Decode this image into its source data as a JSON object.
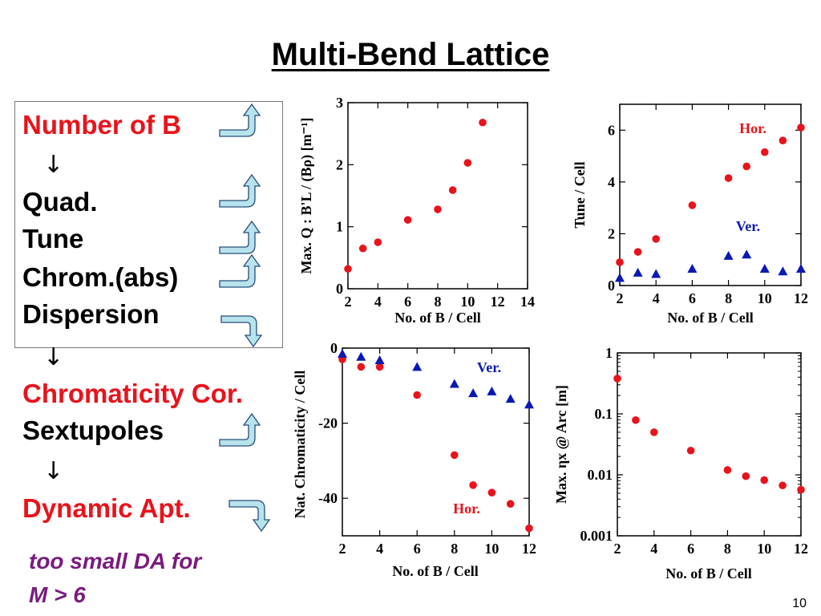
{
  "title": "Multi-Bend Lattice",
  "page_number": "10",
  "flow": {
    "number_of_b": "Number of B",
    "quad": "Quad.",
    "tune": "Tune",
    "chrom": "Chrom.(abs)",
    "dispersion": "Dispersion",
    "chromaticity_cor": "Chromaticity Cor.",
    "sextupoles": "Sextupoles",
    "dynamic_apt": "Dynamic Apt.",
    "down_arrow": "↓",
    "note_line1": "too small DA for",
    "note_line2": "M > 6"
  },
  "icons": {
    "number_of_b": "up-turn-arrow-icon",
    "quad": "up-turn-arrow-icon",
    "tune": "up-turn-arrow-icon",
    "chrom": "up-turn-arrow-icon",
    "dispersion": "down-turn-arrow-icon",
    "sextupoles": "up-turn-arrow-icon",
    "dynamic_apt": "down-turn-arrow-icon",
    "fill_color": "#b7e3ec",
    "stroke_color": "#2a4d7a"
  },
  "colors": {
    "red": "#e8131b",
    "blue": "#0a18b4",
    "text_red": "#e8131b",
    "note": "#7a1a7e"
  },
  "chart_data": [
    {
      "type": "scatter",
      "xlabel": "No. of B / Cell",
      "ylabel": "Max. Q : B'L / (Bρ) [m⁻¹]",
      "xlim": [
        2,
        14
      ],
      "ylim": [
        0,
        3
      ],
      "xticks": [
        2,
        4,
        6,
        8,
        10,
        12,
        14
      ],
      "yticks": [
        0,
        1,
        2,
        3
      ],
      "series": [
        {
          "color": "#e8131b",
          "marker": "circle",
          "x": [
            2,
            3,
            4,
            6,
            8,
            9,
            10,
            11
          ],
          "y": [
            0.32,
            0.65,
            0.75,
            1.11,
            1.28,
            1.59,
            2.03,
            2.68
          ]
        }
      ]
    },
    {
      "type": "scatter",
      "xlabel": "No. of B / Cell",
      "ylabel": "Tune / Cell",
      "xlim": [
        2,
        12
      ],
      "ylim": [
        0,
        7
      ],
      "xticks": [
        2,
        4,
        6,
        8,
        10,
        12
      ],
      "yticks": [
        0,
        2,
        4,
        6
      ],
      "series": [
        {
          "name": "Hor.",
          "color": "#e8131b",
          "marker": "circle",
          "x": [
            2,
            3,
            4,
            6,
            8,
            9,
            10,
            11,
            12
          ],
          "y": [
            0.9,
            1.3,
            1.8,
            3.1,
            4.15,
            4.6,
            5.15,
            5.6,
            6.1
          ]
        },
        {
          "name": "Ver.",
          "color": "#0a18b4",
          "marker": "triangle",
          "x": [
            2,
            3,
            4,
            6,
            8,
            9,
            10,
            11,
            12
          ],
          "y": [
            0.3,
            0.5,
            0.45,
            0.65,
            1.15,
            1.2,
            0.65,
            0.55,
            0.65
          ]
        }
      ]
    },
    {
      "type": "scatter",
      "xlabel": "No. of B / Cell",
      "ylabel": "Nat. Chromaticity / Cell",
      "xlim": [
        2,
        12
      ],
      "ylim": [
        -50,
        0
      ],
      "xticks": [
        2,
        4,
        6,
        8,
        10,
        12
      ],
      "yticks": [
        0,
        -20,
        -40
      ],
      "series": [
        {
          "name": "Hor.",
          "color": "#e8131b",
          "marker": "circle",
          "x": [
            2,
            3,
            4,
            6,
            8,
            9,
            10,
            11,
            12
          ],
          "y": [
            -3,
            -5,
            -5,
            -12.5,
            -28.5,
            -36.5,
            -38.5,
            -41.5,
            -48
          ]
        },
        {
          "name": "Ver.",
          "color": "#0a18b4",
          "marker": "triangle",
          "x": [
            2,
            3,
            4,
            6,
            8,
            9,
            10,
            11,
            12
          ],
          "y": [
            -1.5,
            -2.3,
            -3.2,
            -5,
            -9.5,
            -12,
            -11.5,
            -13.5,
            -15
          ]
        }
      ]
    },
    {
      "type": "scatter",
      "xlabel": "No. of B / Cell",
      "ylabel": "Max. ηx @ Arc [m]",
      "xlim": [
        2,
        12
      ],
      "ylim": [
        0.001,
        1
      ],
      "yscale": "log",
      "xticks": [
        2,
        4,
        6,
        8,
        10,
        12
      ],
      "yticks": [
        1,
        0.1,
        0.01,
        0.001
      ],
      "series": [
        {
          "color": "#e8131b",
          "marker": "circle",
          "x": [
            2,
            3,
            4,
            6,
            8,
            9,
            10,
            11,
            12
          ],
          "y": [
            0.38,
            0.079,
            0.05,
            0.025,
            0.012,
            0.0095,
            0.0082,
            0.0067,
            0.0057
          ]
        }
      ]
    }
  ]
}
